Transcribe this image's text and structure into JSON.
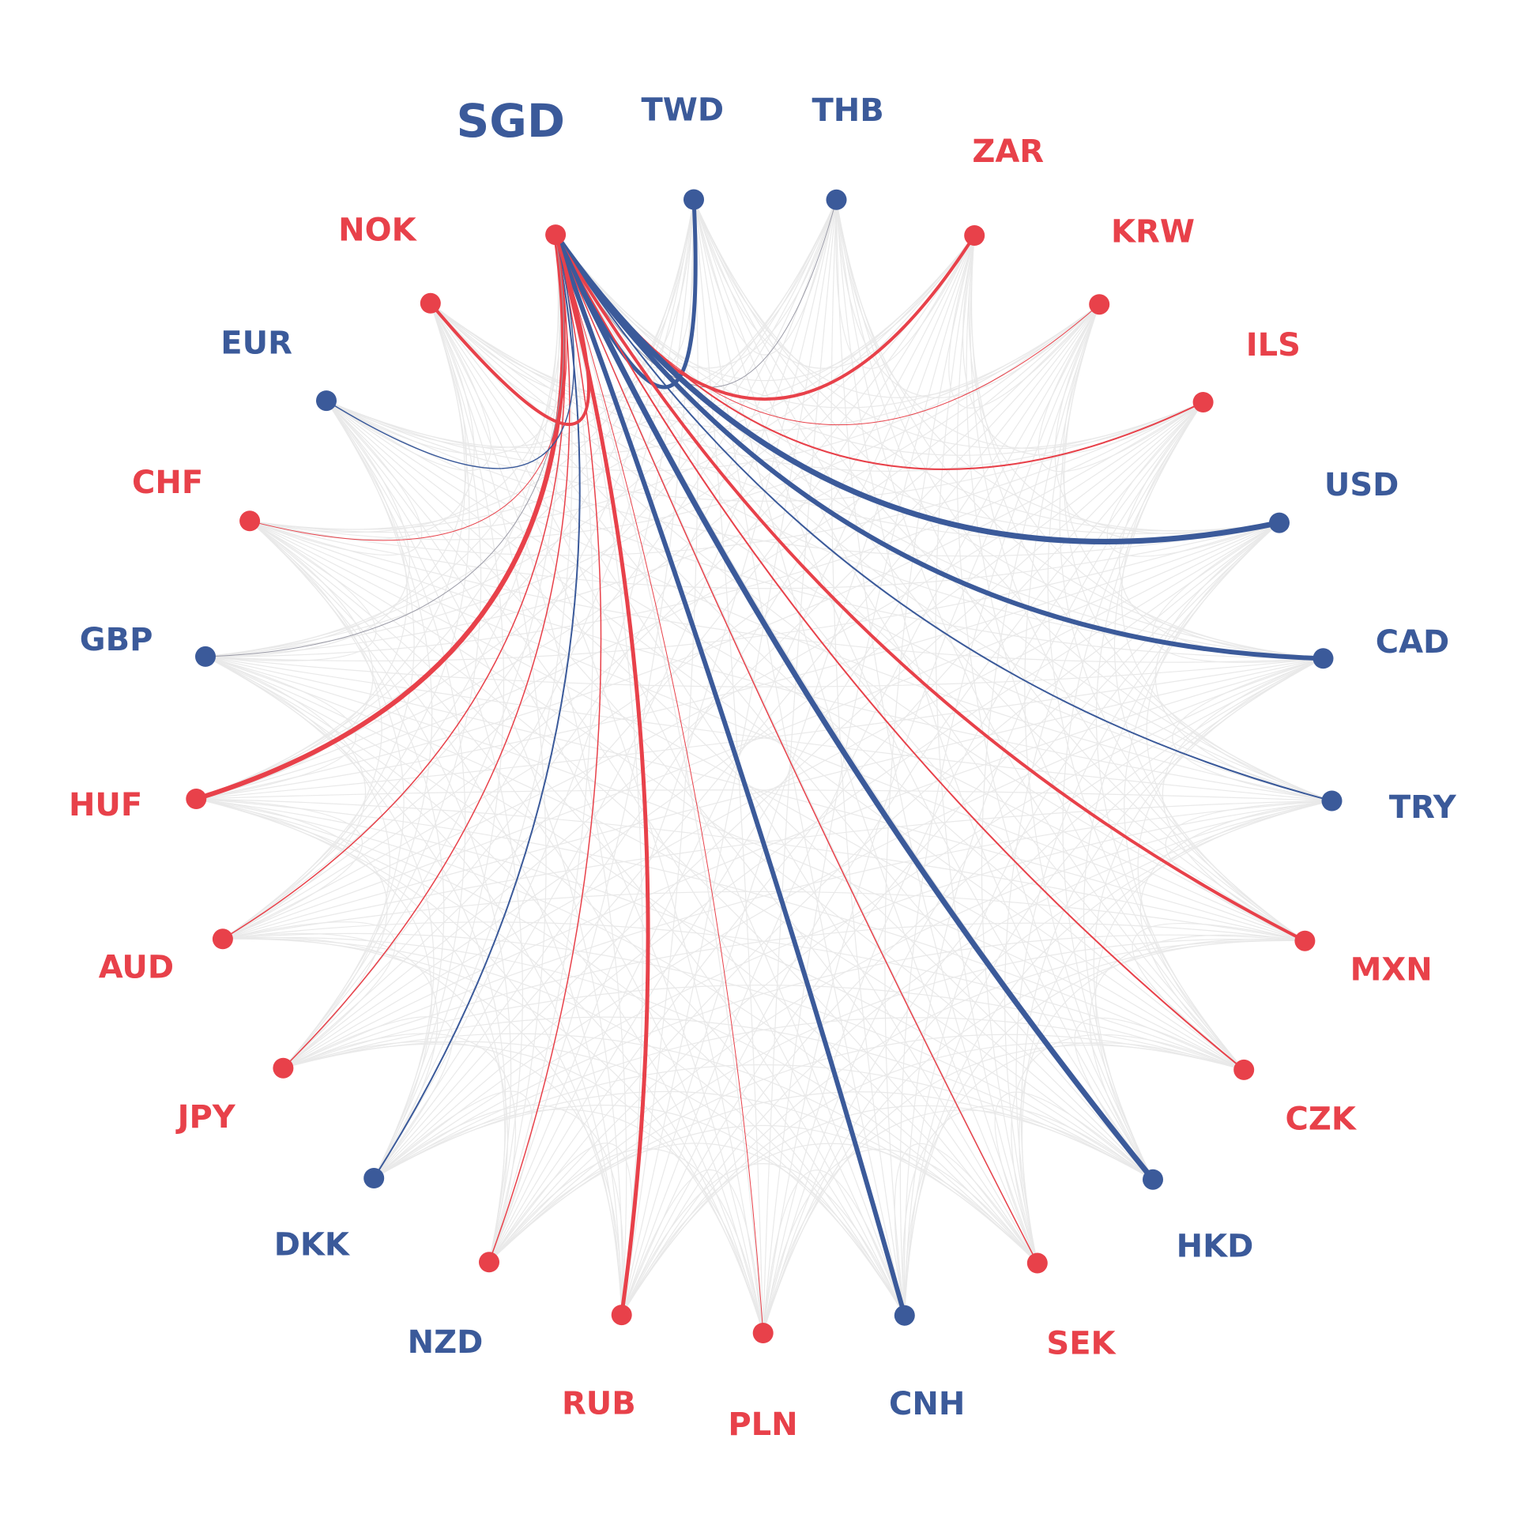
{
  "colors": {
    "positive": "#e8414a",
    "negative": "#3b5a9a",
    "background_edge": "#e9e9e9"
  },
  "focus_node": "SGD",
  "nodes": [
    {
      "id": "SGD",
      "color": "positive",
      "label_color": "negative"
    },
    {
      "id": "TWD",
      "color": "negative"
    },
    {
      "id": "THB",
      "color": "negative"
    },
    {
      "id": "ZAR",
      "color": "positive"
    },
    {
      "id": "KRW",
      "color": "positive"
    },
    {
      "id": "ILS",
      "color": "positive"
    },
    {
      "id": "USD",
      "color": "negative"
    },
    {
      "id": "CAD",
      "color": "negative"
    },
    {
      "id": "TRY",
      "color": "negative"
    },
    {
      "id": "MXN",
      "color": "positive"
    },
    {
      "id": "CZK",
      "color": "positive"
    },
    {
      "id": "HKD",
      "color": "negative"
    },
    {
      "id": "SEK",
      "color": "positive"
    },
    {
      "id": "CNH",
      "color": "negative"
    },
    {
      "id": "PLN",
      "color": "positive"
    },
    {
      "id": "RUB",
      "color": "positive"
    },
    {
      "id": "NZD",
      "color": "positive",
      "label_color": "negative"
    },
    {
      "id": "DKK",
      "color": "negative"
    },
    {
      "id": "JPY",
      "color": "positive"
    },
    {
      "id": "AUD",
      "color": "positive"
    },
    {
      "id": "HUF",
      "color": "positive"
    },
    {
      "id": "GBP",
      "color": "negative"
    },
    {
      "id": "CHF",
      "color": "positive"
    },
    {
      "id": "EUR",
      "color": "negative"
    },
    {
      "id": "NOK",
      "color": "positive"
    }
  ],
  "edges": [
    {
      "source": "SGD",
      "target": "TWD",
      "color": "negative",
      "weight": 5
    },
    {
      "source": "SGD",
      "target": "THB",
      "color": "neutral",
      "weight": 1
    },
    {
      "source": "SGD",
      "target": "ZAR",
      "color": "positive",
      "weight": 4
    },
    {
      "source": "SGD",
      "target": "KRW",
      "color": "positive",
      "weight": 1
    },
    {
      "source": "SGD",
      "target": "ILS",
      "color": "positive",
      "weight": 2
    },
    {
      "source": "SGD",
      "target": "USD",
      "color": "negative",
      "weight": 7
    },
    {
      "source": "SGD",
      "target": "CAD",
      "color": "negative",
      "weight": 6
    },
    {
      "source": "SGD",
      "target": "TRY",
      "color": "negative",
      "weight": 2
    },
    {
      "source": "SGD",
      "target": "MXN",
      "color": "positive",
      "weight": 4
    },
    {
      "source": "SGD",
      "target": "CZK",
      "color": "positive",
      "weight": 2
    },
    {
      "source": "SGD",
      "target": "HKD",
      "color": "negative",
      "weight": 7
    },
    {
      "source": "SGD",
      "target": "SEK",
      "color": "positive",
      "weight": 1.5
    },
    {
      "source": "SGD",
      "target": "CNH",
      "color": "negative",
      "weight": 6
    },
    {
      "source": "SGD",
      "target": "PLN",
      "color": "positive",
      "weight": 1
    },
    {
      "source": "SGD",
      "target": "RUB",
      "color": "positive",
      "weight": 5
    },
    {
      "source": "SGD",
      "target": "NZD",
      "color": "positive",
      "weight": 1.5
    },
    {
      "source": "SGD",
      "target": "DKK",
      "color": "negative",
      "weight": 2
    },
    {
      "source": "SGD",
      "target": "JPY",
      "color": "positive",
      "weight": 1.5
    },
    {
      "source": "SGD",
      "target": "AUD",
      "color": "positive",
      "weight": 1.5
    },
    {
      "source": "SGD",
      "target": "HUF",
      "color": "positive",
      "weight": 6
    },
    {
      "source": "SGD",
      "target": "GBP",
      "color": "neutral",
      "weight": 1
    },
    {
      "source": "SGD",
      "target": "CHF",
      "color": "positive",
      "weight": 1
    },
    {
      "source": "SGD",
      "target": "EUR",
      "color": "negative",
      "weight": 1.5
    },
    {
      "source": "SGD",
      "target": "NOK",
      "color": "positive",
      "weight": 4
    }
  ]
}
